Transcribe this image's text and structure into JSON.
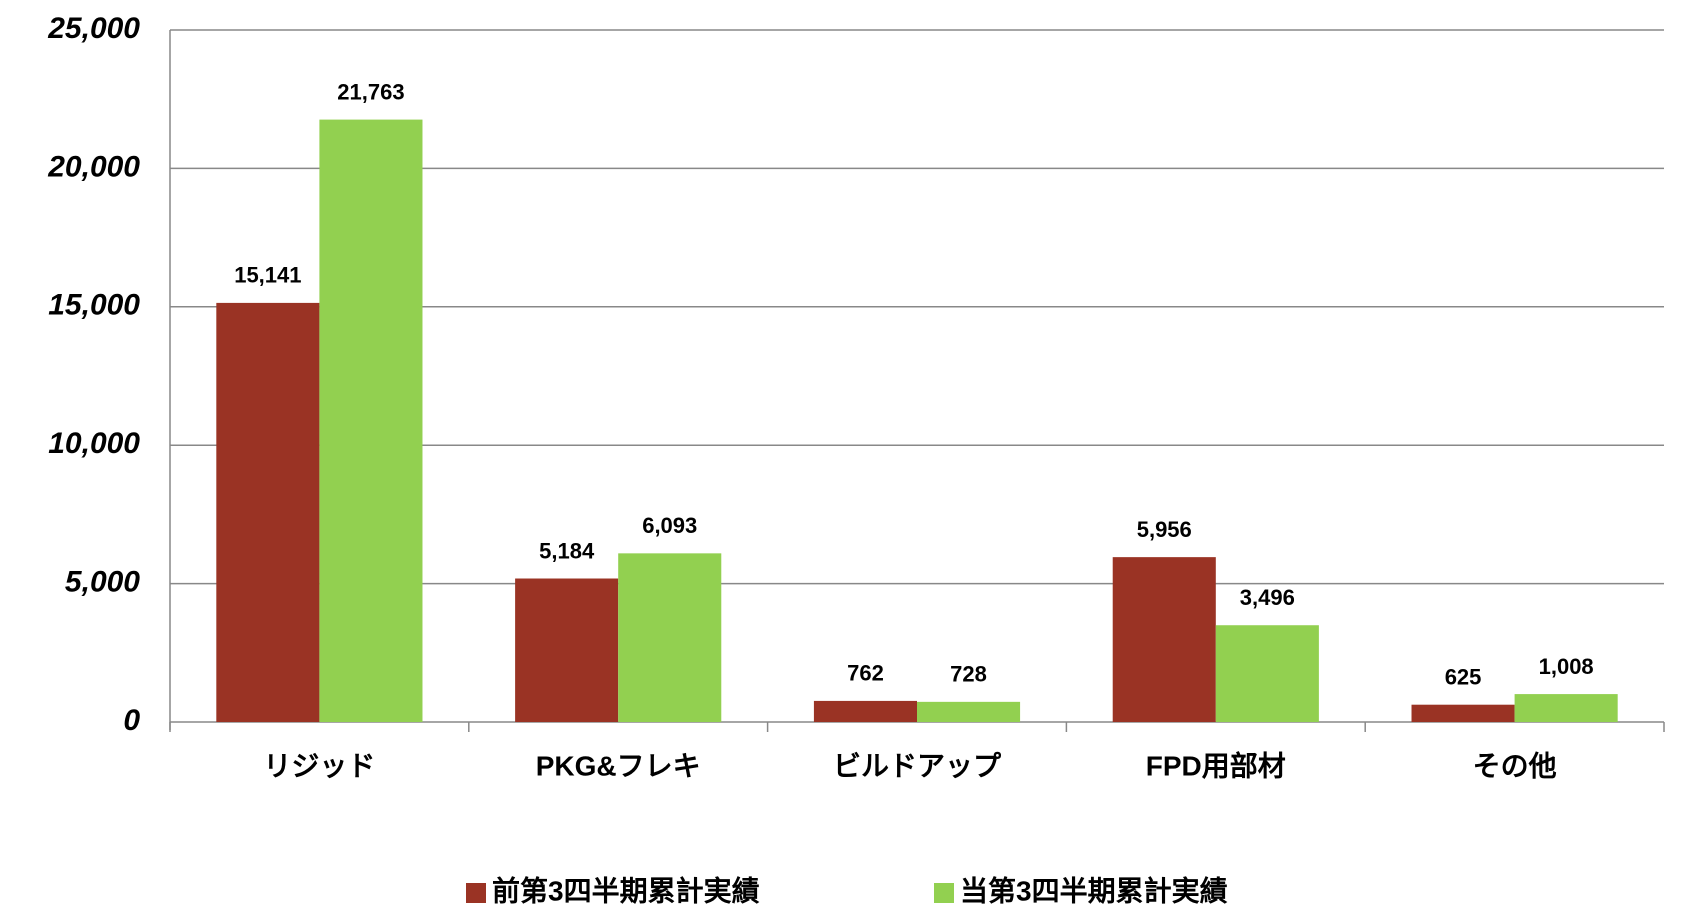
{
  "chart_data": {
    "type": "bar",
    "categories": [
      "リジッド",
      "PKG&フレキ",
      "ビルドアップ",
      "FPD用部材",
      "その他"
    ],
    "series": [
      {
        "name": "前第3四半期累計実績",
        "color": "#9a3324",
        "values": [
          15141,
          5184,
          762,
          5956,
          625
        ],
        "value_labels": [
          "15,141",
          "5,184",
          "762",
          "5,956",
          "625"
        ]
      },
      {
        "name": "当第3四半期累計実績",
        "color": "#92d050",
        "values": [
          21763,
          6093,
          728,
          3496,
          1008
        ],
        "value_labels": [
          "21,763",
          "6,093",
          "728",
          "3,496",
          "1,008"
        ]
      }
    ],
    "ylim": [
      0,
      25000
    ],
    "yticks": [
      0,
      {
        "value": 5000,
        "label": "5,000"
      },
      {
        "value": 10000,
        "label": "10,000"
      },
      {
        "value": 15000,
        "label": "15,000"
      },
      {
        "value": 20000,
        "label": "20,000"
      },
      {
        "value": 25000,
        "label": "25,000"
      }
    ],
    "grid": true,
    "legend": "bottom"
  }
}
